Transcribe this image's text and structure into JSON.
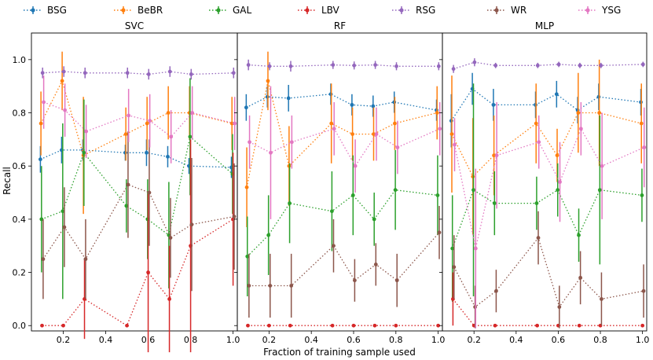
{
  "chart_data": {
    "type": "line",
    "xlabel": "Fraction of training sample used",
    "ylabel": "Recall",
    "xlim": [
      0.05,
      1.02
    ],
    "ylim": [
      -0.02,
      1.1
    ],
    "x_ticks": [
      "0.2",
      "0.4",
      "0.6",
      "0.8",
      "1.0"
    ],
    "y_ticks": [
      "0.0",
      "0.2",
      "0.4",
      "0.6",
      "0.8",
      "1.0"
    ],
    "legend": [
      {
        "name": "BSG",
        "color": "#1f77b4"
      },
      {
        "name": "BeBR",
        "color": "#ff7f0e"
      },
      {
        "name": "GAL",
        "color": "#2ca02c"
      },
      {
        "name": "LBV",
        "color": "#d62728"
      },
      {
        "name": "RSG",
        "color": "#9467bd"
      },
      {
        "name": "WR",
        "color": "#8c564b"
      },
      {
        "name": "YSG",
        "color": "#e377c2"
      }
    ],
    "x": [
      0.1,
      0.2,
      0.3,
      0.5,
      0.6,
      0.7,
      0.8,
      1.0
    ],
    "panels": [
      {
        "title": "SVC",
        "series": [
          {
            "name": "BSG",
            "values": [
              0.625,
              0.66,
              0.66,
              0.65,
              0.65,
              0.635,
              0.6,
              0.595
            ],
            "err": [
              0.05,
              0.05,
              0.04,
              0.03,
              0.05,
              0.04,
              0.03,
              0.04
            ]
          },
          {
            "name": "BeBR",
            "values": [
              0.76,
              0.92,
              0.64,
              0.72,
              0.76,
              0.8,
              0.8,
              0.76
            ],
            "err": [
              0.12,
              0.11,
              0.22,
              0.1,
              0.1,
              0.1,
              0.1,
              0.1
            ]
          },
          {
            "name": "GAL",
            "values": [
              0.4,
              0.43,
              0.65,
              0.45,
              0.4,
              0.34,
              0.71,
              0.57
            ],
            "err": [
              0.2,
              0.33,
              0.2,
              0.1,
              0.15,
              0.2,
              0.22,
              0.15
            ]
          },
          {
            "name": "LBV",
            "values": [
              0.0,
              0.0,
              0.1,
              0.0,
              0.2,
              0.1,
              0.3,
              0.4
            ],
            "err": [
              0.0,
              0.0,
              0.15,
              0.0,
              0.3,
              0.2,
              0.4,
              0.25
            ]
          },
          {
            "name": "RSG",
            "values": [
              0.95,
              0.955,
              0.95,
              0.95,
              0.945,
              0.955,
              0.945,
              0.95
            ],
            "err": [
              0.02,
              0.02,
              0.02,
              0.02,
              0.02,
              0.02,
              0.02,
              0.02
            ]
          },
          {
            "name": "WR",
            "values": [
              0.25,
              0.37,
              0.25,
              0.53,
              0.5,
              0.33,
              0.38,
              0.41
            ],
            "err": [
              0.15,
              0.15,
              0.15,
              0.2,
              0.2,
              0.15,
              0.25,
              0.2
            ]
          },
          {
            "name": "YSG",
            "values": [
              0.84,
              0.81,
              0.73,
              0.79,
              0.77,
              0.71,
              0.8,
              0.76
            ],
            "err": [
              0.1,
              0.1,
              0.1,
              0.1,
              0.1,
              0.1,
              0.1,
              0.1
            ]
          }
        ]
      },
      {
        "title": "RF",
        "series": [
          {
            "name": "BSG",
            "values": [
              0.82,
              0.86,
              0.855,
              0.87,
              0.83,
              0.825,
              0.84,
              0.81
            ],
            "err": [
              0.05,
              0.04,
              0.05,
              0.04,
              0.04,
              0.04,
              0.04,
              0.04
            ]
          },
          {
            "name": "BeBR",
            "values": [
              0.52,
              0.92,
              0.6,
              0.76,
              0.72,
              0.72,
              0.76,
              0.8
            ],
            "err": [
              0.15,
              0.11,
              0.15,
              0.15,
              0.1,
              0.1,
              0.1,
              0.1
            ]
          },
          {
            "name": "GAL",
            "values": [
              0.26,
              0.34,
              0.46,
              0.43,
              0.49,
              0.4,
              0.51,
              0.49
            ],
            "err": [
              0.15,
              0.15,
              0.15,
              0.15,
              0.15,
              0.1,
              0.15,
              0.15
            ]
          },
          {
            "name": "LBV",
            "values": [
              0.0,
              0.0,
              0.0,
              0.0,
              0.0,
              0.0,
              0.0,
              0.0
            ],
            "err": [
              0.0,
              0.0,
              0.0,
              0.0,
              0.0,
              0.0,
              0.0,
              0.0
            ]
          },
          {
            "name": "RSG",
            "values": [
              0.98,
              0.975,
              0.975,
              0.98,
              0.978,
              0.98,
              0.975,
              0.975
            ],
            "err": [
              0.02,
              0.015,
              0.02,
              0.015,
              0.015,
              0.015,
              0.015,
              0.015
            ]
          },
          {
            "name": "WR",
            "values": [
              0.15,
              0.15,
              0.15,
              0.3,
              0.17,
              0.23,
              0.17,
              0.35
            ],
            "err": [
              0.12,
              0.12,
              0.12,
              0.1,
              0.08,
              0.08,
              0.1,
              0.1
            ]
          },
          {
            "name": "YSG",
            "values": [
              0.69,
              0.65,
              0.69,
              0.74,
              0.6,
              0.72,
              0.67,
              0.74
            ],
            "err": [
              0.1,
              0.25,
              0.1,
              0.1,
              0.1,
              0.1,
              0.1,
              0.1
            ]
          }
        ]
      },
      {
        "title": "MLP",
        "series": [
          {
            "name": "BSG",
            "values": [
              0.77,
              0.89,
              0.83,
              0.83,
              0.87,
              0.81,
              0.86,
              0.84
            ],
            "err": [
              0.1,
              0.06,
              0.06,
              0.05,
              0.05,
              0.05,
              0.05,
              0.05
            ]
          },
          {
            "name": "BeBR",
            "values": [
              0.72,
              0.56,
              0.64,
              0.76,
              0.64,
              0.8,
              0.8,
              0.76
            ],
            "err": [
              0.22,
              0.22,
              0.15,
              0.15,
              0.1,
              0.15,
              0.2,
              0.15
            ]
          },
          {
            "name": "GAL",
            "values": [
              0.29,
              0.51,
              0.46,
              0.46,
              0.51,
              0.34,
              0.51,
              0.49
            ],
            "err": [
              0.2,
              0.4,
              0.12,
              0.1,
              0.1,
              0.1,
              0.28,
              0.1
            ]
          },
          {
            "name": "LBV",
            "values": [
              0.1,
              0.0,
              0.0,
              0.0,
              0.0,
              0.0,
              0.0,
              0.0
            ],
            "err": [
              0.1,
              0.0,
              0.0,
              0.0,
              0.0,
              0.0,
              0.0,
              0.0
            ]
          },
          {
            "name": "RSG",
            "values": [
              0.965,
              0.99,
              0.978,
              0.978,
              0.982,
              0.978,
              0.978,
              0.982
            ],
            "err": [
              0.015,
              0.015,
              0.01,
              0.01,
              0.01,
              0.01,
              0.01,
              0.01
            ]
          },
          {
            "name": "WR",
            "values": [
              0.22,
              0.07,
              0.13,
              0.33,
              0.07,
              0.18,
              0.1,
              0.13
            ],
            "err": [
              0.12,
              0.08,
              0.08,
              0.1,
              0.08,
              0.1,
              0.1,
              0.1
            ]
          },
          {
            "name": "YSG",
            "values": [
              0.68,
              0.29,
              0.64,
              0.69,
              0.54,
              0.74,
              0.6,
              0.67
            ],
            "err": [
              0.1,
              0.3,
              0.2,
              0.1,
              0.15,
              0.1,
              0.2,
              0.15
            ]
          }
        ]
      }
    ]
  }
}
